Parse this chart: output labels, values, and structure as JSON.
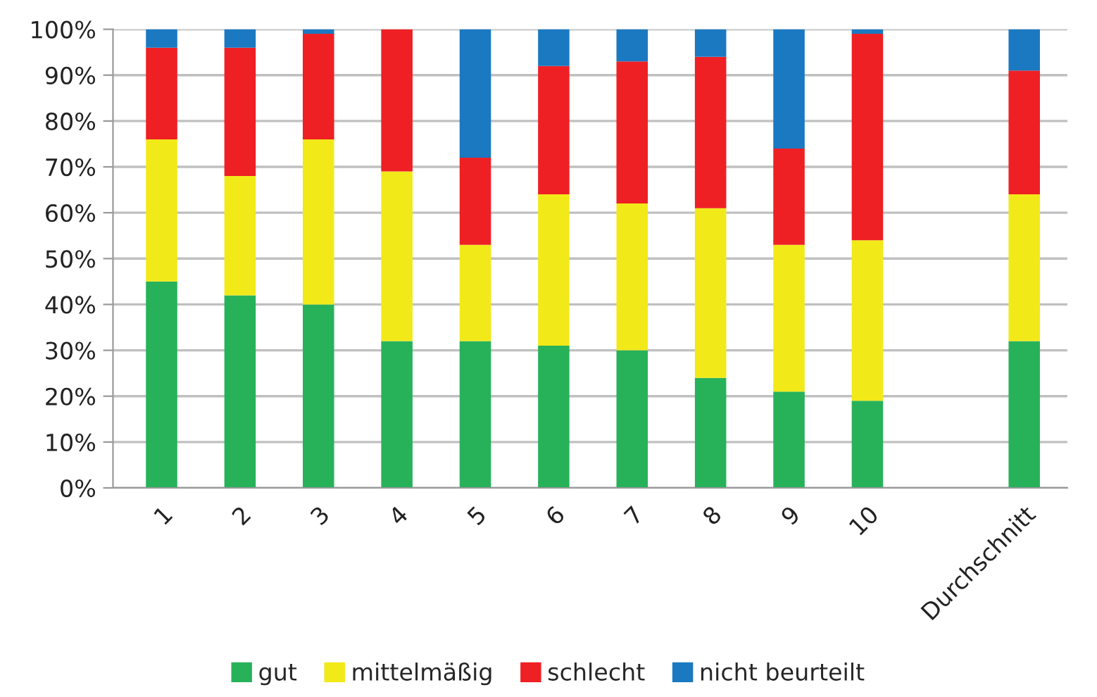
{
  "chart_data": {
    "type": "bar",
    "stacked": true,
    "categories": [
      "1",
      "2",
      "3",
      "4",
      "5",
      "6",
      "7",
      "8",
      "9",
      "10",
      null,
      "Durchschnitt"
    ],
    "series": [
      {
        "name": "gut",
        "color": "#27b25a",
        "values": [
          45,
          42,
          40,
          32,
          32,
          31,
          30,
          24,
          21,
          19,
          null,
          32
        ]
      },
      {
        "name": "mittelmäßig",
        "color": "#f2e919",
        "values": [
          31,
          26,
          36,
          37,
          21,
          33,
          32,
          37,
          32,
          35,
          null,
          32
        ]
      },
      {
        "name": "schlecht",
        "color": "#ee2024",
        "values": [
          20,
          28,
          23,
          31,
          19,
          28,
          31,
          33,
          21,
          45,
          null,
          27
        ]
      },
      {
        "name": "nicht beurteilt",
        "color": "#1a79c1",
        "values": [
          4,
          4,
          1,
          0,
          28,
          8,
          7,
          6,
          26,
          1,
          null,
          9
        ]
      }
    ],
    "ylim": [
      0,
      100
    ],
    "yticks": [
      {
        "value": 0,
        "label": "0%"
      },
      {
        "value": 10,
        "label": "10%"
      },
      {
        "value": 20,
        "label": "20%"
      },
      {
        "value": 30,
        "label": "30%"
      },
      {
        "value": 40,
        "label": "40%"
      },
      {
        "value": 50,
        "label": "50%"
      },
      {
        "value": 60,
        "label": "60%"
      },
      {
        "value": 70,
        "label": "70%"
      },
      {
        "value": 80,
        "label": "80%"
      },
      {
        "value": 90,
        "label": "90%"
      },
      {
        "value": 100,
        "label": "100%"
      }
    ],
    "grid": "y",
    "legend": "bottom"
  }
}
